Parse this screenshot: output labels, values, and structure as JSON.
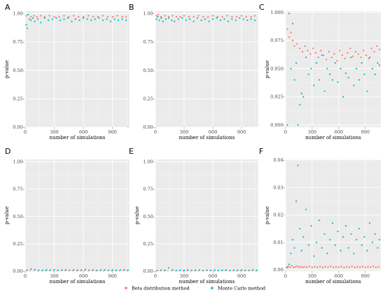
{
  "colors": {
    "beta": "#f8766d",
    "monte_carlo": "#00bfc4",
    "panel_bg": "#ebebeb",
    "grid_major": "#ffffff",
    "grid_minor": "#f5f5f5"
  },
  "legend": {
    "placement": "bottom-center",
    "beta_label": "Beta distribution method",
    "monte_carlo_label": "Monte Carlo method"
  },
  "chart_data": [
    {
      "type": "scatter",
      "panel": "A",
      "xlabel": "number of simulations",
      "ylabel": "p-value",
      "xlim": [
        0,
        1075
      ],
      "ylim": [
        0,
        1.02
      ],
      "xticks": [
        0,
        300,
        600,
        900
      ],
      "xtick_labels": [
        "0",
        "300",
        "600",
        "900"
      ],
      "yticks": [
        0,
        0.25,
        0.5,
        0.75,
        1.0
      ],
      "ytick_labels": [
        "0.00-",
        "0.25-",
        "0.50-",
        "0.75-",
        "1.00-"
      ],
      "grid": true,
      "series": [
        {
          "name": "Beta distribution method",
          "color_key": "beta",
          "x": [
            10,
            30,
            60,
            90,
            120,
            160,
            200,
            250,
            300,
            350,
            400,
            450,
            500,
            550,
            600,
            650,
            700,
            750,
            800,
            850,
            900,
            950,
            1000,
            1040,
            1060
          ],
          "y": [
            0.98,
            0.99,
            0.97,
            0.98,
            0.97,
            0.98,
            0.97,
            0.98,
            0.97,
            0.97,
            0.98,
            0.97,
            0.98,
            0.97,
            0.97,
            0.98,
            0.97,
            0.97,
            0.98,
            0.97,
            0.97,
            0.98,
            0.97,
            0.97,
            0.0
          ]
        },
        {
          "name": "Monte Carlo method",
          "color_key": "monte_carlo",
          "x": [
            10,
            20,
            30,
            45,
            60,
            80,
            100,
            130,
            160,
            200,
            240,
            280,
            320,
            360,
            400,
            440,
            480,
            520,
            560,
            600,
            640,
            680,
            720,
            760,
            800,
            840,
            880,
            920,
            960,
            1000,
            1040
          ],
          "y": [
            0.9,
            0.87,
            0.99,
            0.95,
            0.94,
            0.96,
            0.93,
            0.95,
            0.92,
            0.96,
            0.94,
            0.95,
            0.96,
            0.94,
            0.95,
            0.96,
            0.93,
            0.95,
            0.94,
            0.96,
            0.95,
            0.94,
            0.95,
            0.96,
            0.94,
            0.95,
            0.93,
            0.95,
            0.94,
            0.95,
            0.94
          ]
        }
      ]
    },
    {
      "type": "scatter",
      "panel": "B",
      "xlabel": "number of simulations",
      "ylabel": "",
      "xlim": [
        0,
        1075
      ],
      "ylim": [
        0,
        1.02
      ],
      "xticks": [
        0,
        300,
        600,
        900
      ],
      "xtick_labels": [
        "0",
        "300",
        "600",
        "900"
      ],
      "yticks": [
        0,
        0.25,
        0.5,
        0.75,
        1.0
      ],
      "ytick_labels": [
        "0.00-",
        "0.25-",
        "0.50-",
        "0.75-",
        "1.00-"
      ],
      "grid": true,
      "series": [
        {
          "name": "Beta distribution method",
          "color_key": "beta",
          "x": [
            10,
            30,
            60,
            100,
            140,
            180,
            220,
            260,
            300,
            350,
            400,
            450,
            500,
            550,
            600,
            650,
            700,
            750,
            800,
            850,
            900,
            950,
            1000,
            1040
          ],
          "y": [
            0.98,
            0.99,
            0.97,
            0.98,
            0.97,
            0.98,
            0.97,
            0.97,
            0.98,
            0.97,
            0.97,
            0.98,
            0.97,
            0.97,
            0.98,
            0.97,
            0.97,
            0.98,
            0.97,
            0.97,
            0.98,
            0.97,
            0.97,
            0.98
          ]
        },
        {
          "name": "Monte Carlo method",
          "color_key": "monte_carlo",
          "x": [
            10,
            25,
            40,
            60,
            80,
            110,
            140,
            170,
            200,
            240,
            280,
            320,
            360,
            400,
            440,
            480,
            520,
            560,
            600,
            640,
            680,
            720,
            760,
            800,
            840,
            880,
            920,
            960,
            1000,
            1040
          ],
          "y": [
            0.95,
            0.97,
            0.94,
            0.96,
            0.93,
            0.95,
            0.96,
            0.94,
            0.93,
            0.95,
            0.96,
            0.94,
            0.95,
            0.93,
            0.96,
            0.94,
            0.95,
            0.93,
            0.95,
            0.96,
            0.94,
            0.95,
            0.93,
            0.95,
            0.94,
            0.96,
            0.95,
            0.94,
            0.95,
            0.94
          ]
        }
      ]
    },
    {
      "type": "scatter",
      "panel": "C",
      "xlabel": "number of simulations",
      "ylabel": "p-value",
      "xlim": [
        0,
        1075
      ],
      "ylim": [
        0.898,
        1.001
      ],
      "xticks": [
        0,
        300,
        600,
        900
      ],
      "xtick_labels": [
        "0",
        "300",
        "600",
        "900"
      ],
      "yticks": [
        0.9,
        0.925,
        0.95,
        0.975,
        1.0
      ],
      "ytick_labels": [
        "0.900-",
        "0.925-",
        "0.950-",
        "0.975-",
        "1.000-"
      ],
      "grid": true,
      "series": [
        {
          "name": "Beta distribution method",
          "color_key": "beta",
          "x": [
            20,
            40,
            60,
            80,
            100,
            130,
            160,
            190,
            220,
            250,
            280,
            310,
            340,
            370,
            400,
            430,
            460,
            490,
            520,
            550,
            580,
            610,
            640,
            670,
            700,
            730,
            760,
            790,
            820,
            850,
            880,
            910,
            940,
            970,
            1000,
            1030,
            1060
          ],
          "y": [
            0.985,
            0.978,
            0.982,
            0.975,
            0.97,
            0.972,
            0.968,
            0.965,
            0.97,
            0.966,
            0.963,
            0.968,
            0.964,
            0.96,
            0.966,
            0.962,
            0.958,
            0.965,
            0.96,
            0.963,
            0.957,
            0.966,
            0.962,
            0.959,
            0.964,
            0.968,
            0.961,
            0.965,
            0.963,
            0.96,
            0.966,
            0.962,
            0.959,
            0.968,
            0.965,
            0.97,
            0.967
          ]
        },
        {
          "name": "Monte Carlo method",
          "color_key": "monte_carlo",
          "x": [
            20,
            40,
            60,
            80,
            100,
            120,
            140,
            160,
            180,
            200,
            230,
            260,
            290,
            320,
            350,
            380,
            410,
            440,
            470,
            500,
            530,
            560,
            590,
            620,
            650,
            680,
            710,
            740,
            770,
            800,
            830,
            860,
            890,
            920,
            950,
            980,
            1010,
            1040,
            1060
          ],
          "y": [
            0.9,
            0.999,
            0.95,
            0.99,
            0.94,
            0.955,
            0.9,
            0.918,
            0.928,
            0.925,
            0.96,
            0.945,
            0.95,
            0.935,
            0.955,
            0.94,
            0.962,
            0.93,
            0.95,
            0.945,
            0.94,
            0.955,
            0.938,
            0.95,
            0.925,
            0.946,
            0.942,
            0.96,
            0.935,
            0.95,
            0.94,
            0.955,
            0.945,
            0.93,
            0.96,
            0.95,
            0.945,
            0.955,
            0.953
          ]
        }
      ]
    },
    {
      "type": "scatter",
      "panel": "D",
      "xlabel": "number of simulations",
      "ylabel": "p-value",
      "xlim": [
        0,
        1075
      ],
      "ylim": [
        0,
        1.02
      ],
      "xticks": [
        0,
        300,
        600,
        900
      ],
      "xtick_labels": [
        "0",
        "300",
        "600",
        "900"
      ],
      "yticks": [
        0,
        0.25,
        0.5,
        0.75,
        1.0
      ],
      "ytick_labels": [
        "0.00-",
        "0.25-",
        "0.50-",
        "0.75-",
        "1.00-"
      ],
      "grid": true,
      "series": [
        {
          "name": "Beta distribution method",
          "color_key": "beta",
          "x": [
            10,
            50,
            90,
            130,
            170,
            210,
            250,
            290,
            330,
            370,
            410,
            450,
            490,
            530,
            570,
            610,
            650,
            690,
            730,
            770,
            810,
            850,
            890,
            930,
            970,
            1010,
            1050
          ],
          "y": [
            0.0,
            0.001,
            0.0,
            0.001,
            0.0,
            0.001,
            0.0,
            0.001,
            0.001,
            0.0,
            0.001,
            0.0,
            0.001,
            0.001,
            0.0,
            0.001,
            0.0,
            0.001,
            0.001,
            0.0,
            0.001,
            0.0,
            0.001,
            0.001,
            0.0,
            0.001,
            0.001
          ]
        },
        {
          "name": "Monte Carlo method",
          "color_key": "monte_carlo",
          "x": [
            20,
            60,
            100,
            140,
            180,
            220,
            260,
            300,
            340,
            380,
            420,
            460,
            500,
            540,
            580,
            620,
            660,
            700,
            740,
            780,
            820,
            860,
            900,
            940,
            980,
            1020,
            1060
          ],
          "y": [
            0.01,
            0.02,
            0.015,
            0.01,
            0.008,
            0.012,
            0.01,
            0.014,
            0.009,
            0.011,
            0.013,
            0.01,
            0.012,
            0.009,
            0.011,
            0.015,
            0.01,
            0.012,
            0.008,
            0.011,
            0.013,
            0.01,
            0.012,
            0.009,
            0.011,
            0.013,
            0.01
          ]
        }
      ]
    },
    {
      "type": "scatter",
      "panel": "E",
      "xlabel": "number of simulations",
      "ylabel": "p-value",
      "xlim": [
        0,
        1075
      ],
      "ylim": [
        0,
        1.02
      ],
      "xticks": [
        0,
        300,
        600,
        900
      ],
      "xtick_labels": [
        "0",
        "300",
        "600",
        "900"
      ],
      "yticks": [
        0,
        0.25,
        0.5,
        0.75,
        1.0
      ],
      "ytick_labels": [
        "0.00-",
        "0.25-",
        "0.50-",
        "0.75-",
        "1.00-"
      ],
      "grid": true,
      "series": [
        {
          "name": "Beta distribution method",
          "color_key": "beta",
          "x": [
            10,
            50,
            90,
            130,
            170,
            210,
            250,
            290,
            330,
            370,
            410,
            450,
            490,
            530,
            570,
            610,
            650,
            690,
            730,
            770,
            810,
            850,
            890,
            930,
            970,
            1010,
            1050
          ],
          "y": [
            0.0,
            0.001,
            0.0,
            0.001,
            0.0,
            0.001,
            0.001,
            0.0,
            0.001,
            0.0,
            0.001,
            0.001,
            0.0,
            0.001,
            0.0,
            0.001,
            0.001,
            0.0,
            0.001,
            0.0,
            0.001,
            0.001,
            0.0,
            0.001,
            0.0,
            0.001,
            0.001
          ]
        },
        {
          "name": "Monte Carlo method",
          "color_key": "monte_carlo",
          "x": [
            20,
            60,
            100,
            140,
            180,
            220,
            260,
            300,
            340,
            380,
            420,
            460,
            500,
            540,
            580,
            620,
            660,
            700,
            740,
            780,
            820,
            860,
            900,
            940,
            980,
            1020,
            1060
          ],
          "y": [
            0.005,
            0.01,
            0.008,
            0.03,
            0.012,
            0.006,
            0.01,
            0.008,
            0.012,
            0.007,
            0.009,
            0.011,
            0.006,
            0.01,
            0.008,
            0.012,
            0.007,
            0.009,
            0.011,
            0.006,
            0.01,
            0.008,
            0.012,
            0.007,
            0.009,
            0.011,
            0.008
          ]
        }
      ]
    },
    {
      "type": "scatter",
      "panel": "F",
      "xlabel": "number of simulations",
      "ylabel": "p-value",
      "xlim": [
        0,
        1075
      ],
      "ylim": [
        -0.0005,
        0.0402
      ],
      "xticks": [
        0,
        300,
        600,
        900
      ],
      "xtick_labels": [
        "0",
        "300",
        "600",
        "900"
      ],
      "yticks": [
        0,
        0.01,
        0.02,
        0.03,
        0.04
      ],
      "ytick_labels": [
        "0.00-",
        "0.01-",
        "0.02-",
        "0.03-",
        "0.04-"
      ],
      "grid": true,
      "series": [
        {
          "name": "Beta distribution method",
          "color_key": "beta",
          "x": [
            10,
            30,
            50,
            70,
            90,
            110,
            130,
            150,
            170,
            190,
            210,
            240,
            270,
            300,
            330,
            360,
            390,
            420,
            450,
            480,
            510,
            540,
            570,
            600,
            630,
            660,
            690,
            720,
            750,
            780,
            810,
            840,
            870,
            900,
            930,
            960,
            990,
            1020,
            1050
          ],
          "y": [
            0.0008,
            0.0012,
            0.001,
            0.0015,
            0.0009,
            0.0011,
            0.0013,
            0.001,
            0.0012,
            0.0009,
            0.0011,
            0.001,
            0.0013,
            0.0009,
            0.0011,
            0.001,
            0.0012,
            0.0009,
            0.0011,
            0.001,
            0.0013,
            0.0009,
            0.0011,
            0.001,
            0.0012,
            0.0009,
            0.0011,
            0.001,
            0.0013,
            0.0009,
            0.0011,
            0.001,
            0.0012,
            0.0009,
            0.0011,
            0.001,
            0.0013,
            0.0009,
            0.0011
          ]
        },
        {
          "name": "Monte Carlo method",
          "color_key": "monte_carlo",
          "x": [
            20,
            40,
            60,
            80,
            100,
            120,
            140,
            160,
            180,
            200,
            230,
            260,
            290,
            320,
            350,
            380,
            410,
            440,
            470,
            500,
            530,
            560,
            590,
            620,
            650,
            680,
            710,
            740,
            770,
            800,
            830,
            860,
            890,
            920,
            950,
            980,
            1010,
            1040,
            1060
          ],
          "y": [
            0.001,
            0.002,
            0.006,
            0.011,
            0.008,
            0.025,
            0.038,
            0.015,
            0.007,
            0.012,
            0.022,
            0.009,
            0.016,
            0.005,
            0.01,
            0.018,
            0.008,
            0.013,
            0.006,
            0.011,
            0.017,
            0.009,
            0.014,
            0.007,
            0.012,
            0.016,
            0.008,
            0.013,
            0.006,
            0.011,
            0.015,
            0.009,
            0.012,
            0.007,
            0.017,
            0.01,
            0.013,
            0.008,
            0.011
          ]
        }
      ]
    }
  ]
}
